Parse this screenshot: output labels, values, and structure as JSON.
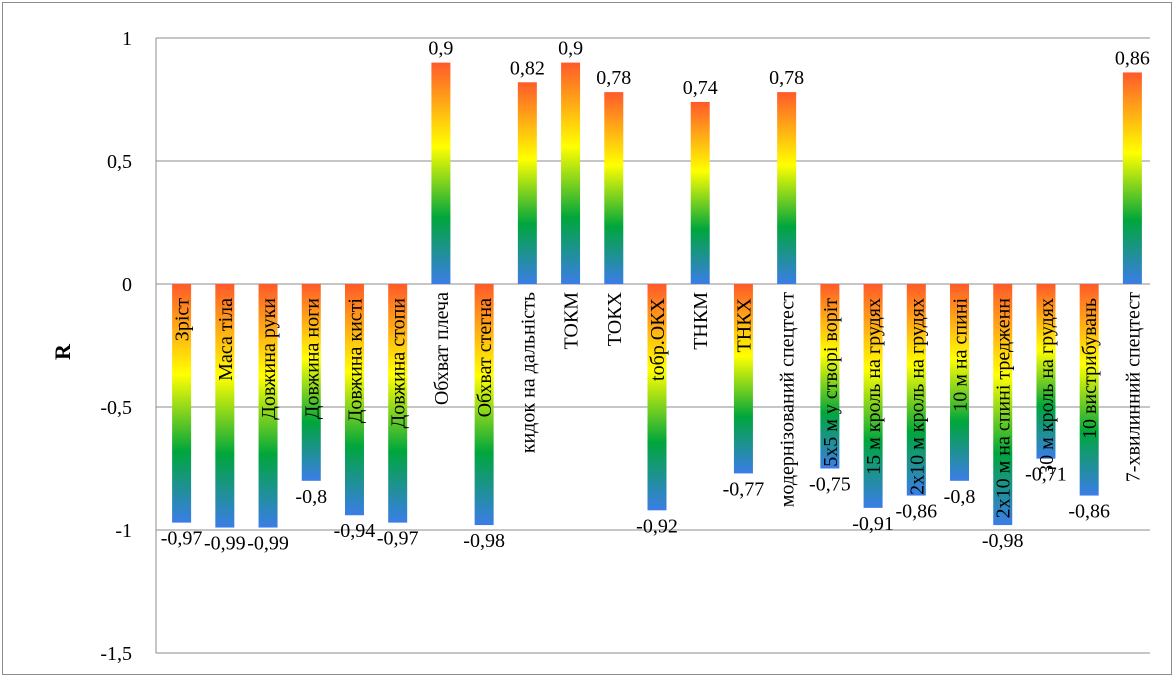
{
  "chart_data": {
    "type": "bar",
    "ylabel": "R",
    "ylim": [
      -1.5,
      1
    ],
    "yticks": [
      "1",
      "0,5",
      "0",
      "-0,5",
      "-1",
      "-1,5"
    ],
    "ytick_values": [
      1,
      0.5,
      0,
      -0.5,
      -1,
      -1.5
    ],
    "grid": true,
    "legend": "none",
    "bar_gradient": [
      "#3b7de8",
      "#00a63c",
      "#ffff00",
      "#ff5a2a"
    ],
    "categories": [
      "Зріст",
      "Маса тіла",
      "Довжина руки",
      "Довжина ноги",
      "Довжина кисті",
      "Довжина стопи",
      "Обхват плеча",
      "Обхват стегна",
      "кидок на дальність",
      "ТОКМ",
      "ТОКХ",
      "tобр.ОКХ",
      "ТНКМ",
      "ТНКХ",
      "модернізований спецтест",
      "5х5 м у створі воріт",
      "15 м кроль на грудях",
      "2х10 м кроль на грудях",
      "10 м на спині",
      "2х10 м на спині тредженн",
      "30 м кроль на грудях",
      "10 вистрибувань",
      "7-хвилинний спецтест"
    ],
    "values": [
      -0.97,
      -0.99,
      -0.99,
      -0.8,
      -0.94,
      -0.97,
      0.9,
      -0.98,
      0.82,
      0.9,
      0.78,
      -0.92,
      0.74,
      -0.77,
      0.78,
      -0.75,
      -0.91,
      -0.86,
      -0.8,
      -0.98,
      -0.71,
      -0.86,
      0.86
    ],
    "data_labels": [
      "-0,97",
      "-0,99",
      "-0,99",
      "-0,8",
      "-0,94",
      "-0,97",
      "0,9",
      "-0,98",
      "0,82",
      "0,9",
      "0,78",
      "-0,92",
      "0,74",
      "-0,77",
      "0,78",
      "-0,75",
      "-0,91",
      "-0,86",
      "-0,8",
      "-0,98",
      "-0,71",
      "-0,86",
      "0,86"
    ]
  }
}
